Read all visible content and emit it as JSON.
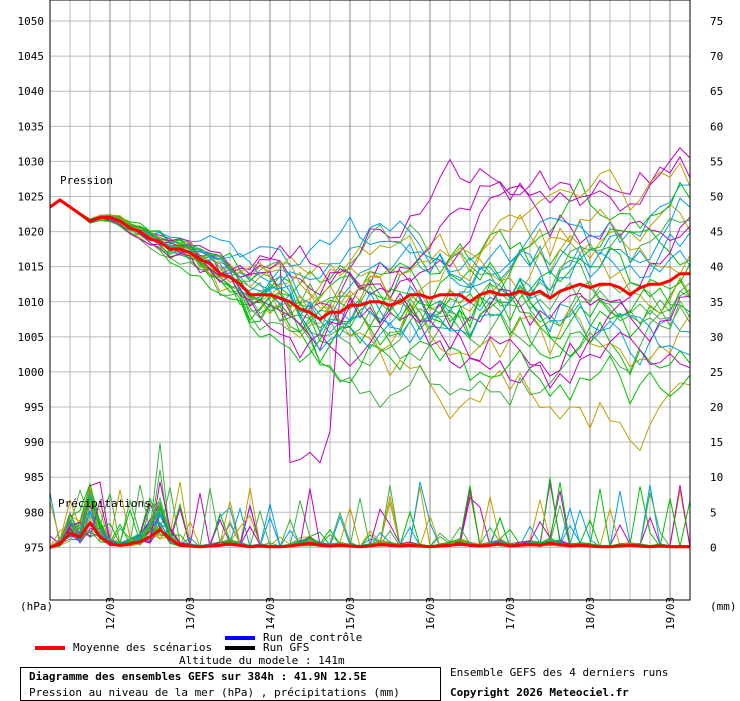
{
  "chart_data": {
    "type": "line",
    "left_axis": {
      "unit": "(hPa)",
      "ticks": [
        975,
        980,
        985,
        990,
        995,
        1000,
        1005,
        1010,
        1015,
        1020,
        1025,
        1030,
        1035,
        1040,
        1045,
        1050
      ],
      "ylim": [
        967.5,
        1053
      ]
    },
    "right_axis": {
      "unit": "(mm)",
      "ticks": [
        0,
        5,
        10,
        15,
        20,
        25,
        30,
        35,
        40,
        45,
        50,
        55,
        60,
        65,
        70,
        75
      ],
      "ylim": [
        -7.5,
        78
      ]
    },
    "x_axis": {
      "range_hours": [
        0,
        384
      ],
      "tick_labels": [
        "12/03",
        "13/03",
        "14/03",
        "15/03",
        "16/03",
        "17/03",
        "18/03",
        "19/03"
      ],
      "tick_hours": [
        36,
        84,
        132,
        180,
        228,
        276,
        324,
        372
      ]
    },
    "annotations": {
      "pressure_label": "Pression",
      "precip_label": "Précipitations"
    },
    "series_colors": {
      "mean": "#ff0000",
      "control": "#0000ff",
      "gfs": "#000000",
      "members": [
        "#00c000",
        "#c0a000",
        "#c000c0",
        "#00a0e0",
        "#40b040"
      ]
    },
    "mean_pressure": [
      [
        0,
        1023.5
      ],
      [
        6,
        1024.5
      ],
      [
        12,
        1023.5
      ],
      [
        18,
        1022.5
      ],
      [
        24,
        1021.5
      ],
      [
        30,
        1022
      ],
      [
        36,
        1022
      ],
      [
        42,
        1021.5
      ],
      [
        48,
        1020.5
      ],
      [
        54,
        1020
      ],
      [
        60,
        1019
      ],
      [
        66,
        1018.5
      ],
      [
        72,
        1017.5
      ],
      [
        78,
        1017.5
      ],
      [
        84,
        1017
      ],
      [
        90,
        1016
      ],
      [
        96,
        1015.5
      ],
      [
        102,
        1014
      ],
      [
        108,
        1013.5
      ],
      [
        114,
        1012.5
      ],
      [
        120,
        1011
      ],
      [
        126,
        1011
      ],
      [
        132,
        1011
      ],
      [
        138,
        1010.5
      ],
      [
        144,
        1010
      ],
      [
        150,
        1009
      ],
      [
        156,
        1008.5
      ],
      [
        162,
        1007.5
      ],
      [
        168,
        1008.5
      ],
      [
        174,
        1008.5
      ],
      [
        180,
        1009.5
      ],
      [
        186,
        1009.5
      ],
      [
        192,
        1010
      ],
      [
        198,
        1010
      ],
      [
        204,
        1009.5
      ],
      [
        210,
        1010
      ],
      [
        216,
        1011
      ],
      [
        222,
        1011
      ],
      [
        228,
        1010.5
      ],
      [
        234,
        1011
      ],
      [
        240,
        1011
      ],
      [
        246,
        1011
      ],
      [
        252,
        1010
      ],
      [
        258,
        1011
      ],
      [
        264,
        1011.5
      ],
      [
        270,
        1011
      ],
      [
        276,
        1011
      ],
      [
        282,
        1011.5
      ],
      [
        288,
        1011
      ],
      [
        294,
        1011.5
      ],
      [
        300,
        1010.5
      ],
      [
        306,
        1011.5
      ],
      [
        312,
        1012
      ],
      [
        318,
        1012.5
      ],
      [
        324,
        1012
      ],
      [
        330,
        1012.5
      ],
      [
        336,
        1012.5
      ],
      [
        342,
        1012
      ],
      [
        348,
        1011
      ],
      [
        354,
        1012
      ],
      [
        360,
        1012.5
      ],
      [
        366,
        1012.5
      ],
      [
        372,
        1013
      ],
      [
        378,
        1014
      ],
      [
        384,
        1014
      ]
    ],
    "mean_precip": [
      [
        0,
        0
      ],
      [
        6,
        0.5
      ],
      [
        12,
        2
      ],
      [
        18,
        1.5
      ],
      [
        24,
        3.5
      ],
      [
        30,
        1.5
      ],
      [
        36,
        0.5
      ],
      [
        42,
        0.3
      ],
      [
        48,
        0.5
      ],
      [
        54,
        0.8
      ],
      [
        60,
        1.5
      ],
      [
        66,
        2.5
      ],
      [
        72,
        1.2
      ],
      [
        78,
        0.3
      ],
      [
        84,
        0.2
      ],
      [
        90,
        0.1
      ],
      [
        96,
        0.2
      ],
      [
        102,
        0.3
      ],
      [
        108,
        0.5
      ],
      [
        114,
        0.3
      ],
      [
        120,
        0.1
      ],
      [
        126,
        0.2
      ],
      [
        132,
        0.1
      ],
      [
        138,
        0.1
      ],
      [
        144,
        0.2
      ],
      [
        150,
        0.4
      ],
      [
        156,
        0.6
      ],
      [
        162,
        0.3
      ],
      [
        168,
        0.2
      ],
      [
        174,
        0.3
      ],
      [
        180,
        0.2
      ],
      [
        186,
        0.1
      ],
      [
        192,
        0.2
      ],
      [
        198,
        0.4
      ],
      [
        204,
        0.3
      ],
      [
        210,
        0.2
      ],
      [
        216,
        0.3
      ],
      [
        222,
        0.2
      ],
      [
        228,
        0.1
      ],
      [
        234,
        0.2
      ],
      [
        240,
        0.3
      ],
      [
        246,
        0.5
      ],
      [
        252,
        0.3
      ],
      [
        258,
        0.2
      ],
      [
        264,
        0.3
      ],
      [
        270,
        0.5
      ],
      [
        276,
        0.2
      ],
      [
        282,
        0.3
      ],
      [
        288,
        0.4
      ],
      [
        294,
        0.3
      ],
      [
        300,
        0.6
      ],
      [
        306,
        0.4
      ],
      [
        312,
        0.2
      ],
      [
        318,
        0.3
      ],
      [
        324,
        0.2
      ],
      [
        330,
        0.1
      ],
      [
        336,
        0.1
      ],
      [
        342,
        0.2
      ],
      [
        348,
        0.3
      ],
      [
        354,
        0.2
      ],
      [
        360,
        0.1
      ],
      [
        366,
        0.2
      ],
      [
        372,
        0.1
      ],
      [
        378,
        0.1
      ],
      [
        384,
        0.1
      ]
    ],
    "member_count": 31,
    "member_spread_note": ""
  },
  "legend": {
    "mean_label": "Moyenne des scénarios",
    "control_label": "Run de contrôle",
    "gfs_label": "Run GFS"
  },
  "footer": {
    "altitude": "Altitude du modele : 141m",
    "title": "Diagramme des ensembles GEFS sur 384h : 41.9N 12.5E",
    "subtitle": "Pression au niveau de la mer (hPa) , précipitations (mm)",
    "ensemble_note": "Ensemble GEFS des 4 derniers runs",
    "copyright": "Copyright 2026 Meteociel.fr"
  }
}
